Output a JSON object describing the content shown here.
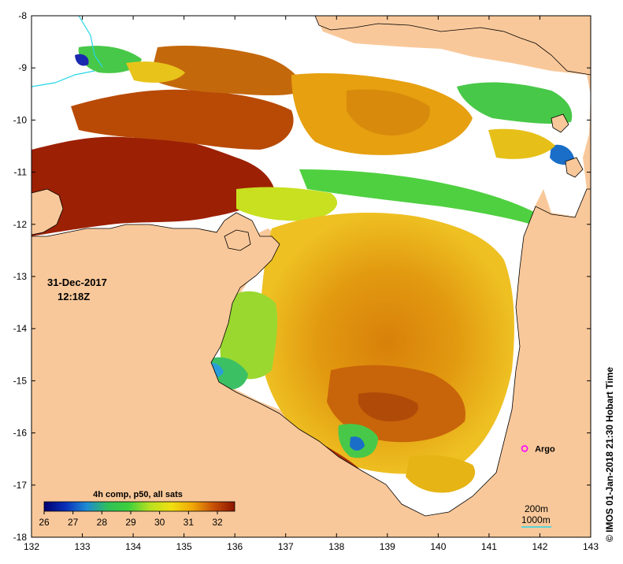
{
  "map": {
    "date_label": "31-Dec-2017",
    "time_label": "12:18Z",
    "credit": "© IMOS 01-Jan-2018 21:30 Hobart Time",
    "colors": {
      "land": "#f9c89a",
      "no_data": "#ffffff",
      "coastline": "#000000",
      "river": "#27d7e6"
    },
    "x_axis": {
      "min": 132,
      "max": 143,
      "ticks": [
        "132",
        "133",
        "134",
        "135",
        "136",
        "137",
        "138",
        "139",
        "140",
        "141",
        "142",
        "143"
      ]
    },
    "y_axis": {
      "min": -18,
      "max": -8,
      "ticks": [
        "-8",
        "-9",
        "-10",
        "-11",
        "-12",
        "-13",
        "-14",
        "-15",
        "-16",
        "-17",
        "-18"
      ]
    }
  },
  "legend": {
    "title": "4h comp, p50, all sats",
    "ticks": [
      "26",
      "27",
      "28",
      "29",
      "30",
      "31",
      "32"
    ],
    "range": [
      26,
      32.6
    ],
    "gradient": [
      "#000070",
      "#0a2fb8",
      "#1f8ad6",
      "#2fbf5a",
      "#3fd03c",
      "#b8e020",
      "#f0e010",
      "#f0a808",
      "#c85008",
      "#8c1400"
    ]
  },
  "argo": {
    "label": "Argo",
    "lon": 141.7,
    "lat": -16.3,
    "color": "#ff00ff"
  },
  "scale": {
    "label_200": "200m",
    "label_1000": "1000m"
  }
}
